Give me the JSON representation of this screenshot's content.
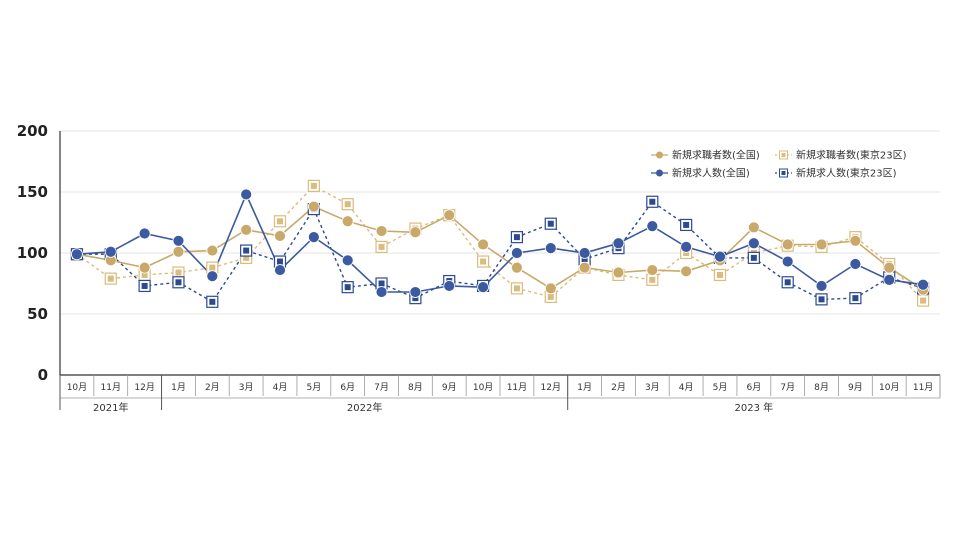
{
  "chart_data": {
    "type": "line",
    "title": "",
    "xlabel": "",
    "ylabel": "",
    "ylim": [
      0,
      200
    ],
    "yticks": [
      0,
      50,
      100,
      150,
      200
    ],
    "categories": [
      "10月",
      "11月",
      "12月",
      "1月",
      "2月",
      "3月",
      "4月",
      "5月",
      "6月",
      "7月",
      "8月",
      "9月",
      "10月",
      "11月",
      "12月",
      "1月",
      "2月",
      "3月",
      "4月",
      "5月",
      "6月",
      "7月",
      "8月",
      "9月",
      "10月",
      "11月"
    ],
    "year_groups": [
      {
        "label": "2021年",
        "start": 0,
        "end": 2
      },
      {
        "label": "2022年",
        "start": 3,
        "end": 14
      },
      {
        "label": "2023 年",
        "start": 15,
        "end": 25
      }
    ],
    "legend": "top-right",
    "series": [
      {
        "name": "新規求職者数(全国)",
        "color": "#c9a96a",
        "style": "solid",
        "marker": "circle",
        "values": [
          99,
          94,
          88,
          101,
          102,
          119,
          114,
          138,
          126,
          118,
          117,
          131,
          107,
          88,
          71,
          88,
          84,
          86,
          85,
          94,
          121,
          107,
          107,
          110,
          88,
          70
        ]
      },
      {
        "name": "新規求職者数(東京23区)",
        "color": "#d9bc7e",
        "style": "dashed",
        "marker": "square",
        "values": [
          99,
          79,
          82,
          84,
          88,
          96,
          126,
          155,
          140,
          105,
          120,
          131,
          93,
          71,
          64,
          88,
          82,
          78,
          100,
          82,
          100,
          106,
          105,
          113,
          91,
          61
        ]
      },
      {
        "name": "新規求人数(全国)",
        "color": "#3c5aa0",
        "style": "solid",
        "marker": "circle",
        "values": [
          99,
          101,
          116,
          110,
          81,
          148,
          86,
          113,
          94,
          68,
          68,
          73,
          72,
          100,
          104,
          100,
          108,
          122,
          105,
          97,
          108,
          93,
          73,
          91,
          78,
          74
        ]
      },
      {
        "name": "新規求人数(東京23区)",
        "color": "#2d4a90",
        "style": "dashed",
        "marker": "square",
        "values": [
          99,
          99,
          73,
          76,
          60,
          102,
          93,
          136,
          72,
          75,
          63,
          77,
          73,
          113,
          124,
          95,
          104,
          142,
          123,
          96,
          96,
          76,
          62,
          63,
          80,
          71
        ]
      }
    ]
  }
}
